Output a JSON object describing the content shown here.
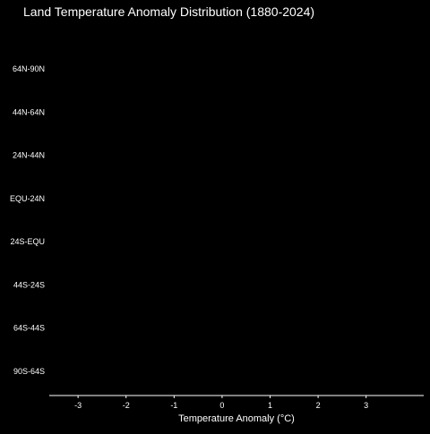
{
  "chart_data": {
    "type": "ridgeline",
    "title": "Land Temperature Anomaly Distribution (1880-2024)",
    "xlabel": "Temperature Anomaly (°C)",
    "ylabel": "",
    "xlim": [
      -3.6,
      4.2
    ],
    "x_ticks": [
      -3,
      -2,
      -1,
      0,
      1,
      2,
      3
    ],
    "x_tick_labels": [
      "-3",
      "-2",
      "-1",
      "0",
      "1",
      "2",
      "3"
    ],
    "categories": [
      "64N-90N",
      "44N-64N",
      "24N-44N",
      "EQU-24N",
      "24S-EQU",
      "44S-24S",
      "64S-44S",
      "90S-64S"
    ],
    "series": [],
    "grid": false,
    "colors": {
      "background": "#000000",
      "text": "#ffffff",
      "axis": "#ffffff"
    }
  }
}
